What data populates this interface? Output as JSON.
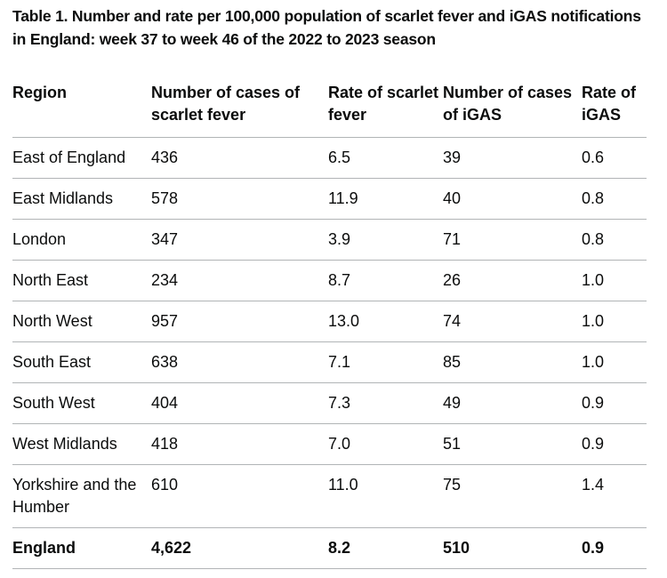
{
  "caption": "Table 1. Number and rate per 100,000 population of scarlet fever and iGAS notifications in England: week 37 to week 46 of the 2022 to 2023 season",
  "table": {
    "headers": [
      "Region",
      "Number of cases of scarlet fever",
      "Rate of scarlet fever",
      "Number of cases of iGAS",
      "Rate of iGAS"
    ],
    "rows": [
      [
        "East of England",
        "436",
        "6.5",
        "39",
        "0.6"
      ],
      [
        "East Midlands",
        "578",
        "11.9",
        "40",
        "0.8"
      ],
      [
        "London",
        "347",
        "3.9",
        "71",
        "0.8"
      ],
      [
        "North East",
        "234",
        "8.7",
        "26",
        "1.0"
      ],
      [
        "North West",
        "957",
        "13.0",
        "74",
        "1.0"
      ],
      [
        "South East",
        "638",
        "7.1",
        "85",
        "1.0"
      ],
      [
        "South West",
        "404",
        "7.3",
        "49",
        "0.9"
      ],
      [
        "West Midlands",
        "418",
        "7.0",
        "51",
        "0.9"
      ],
      [
        "Yorkshire and the Humber",
        "610",
        "11.0",
        "75",
        "1.4"
      ]
    ],
    "total": [
      "England",
      "4,622",
      "8.2",
      "510",
      "0.9"
    ]
  }
}
